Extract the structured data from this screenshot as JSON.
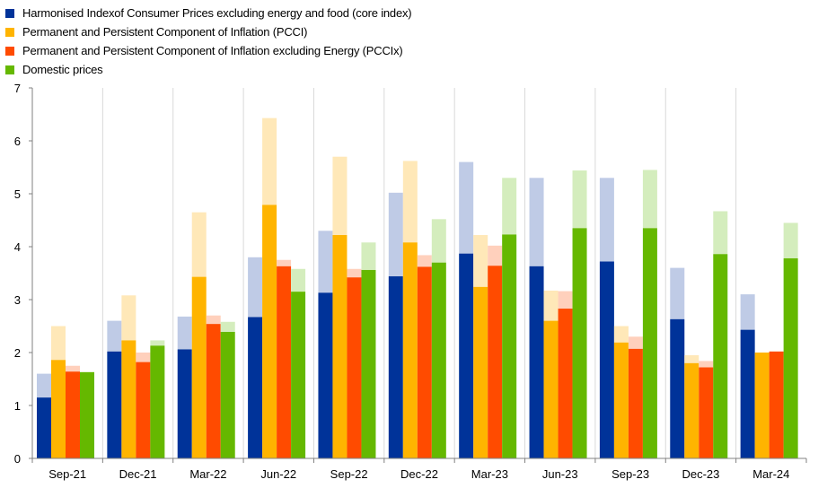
{
  "chart_data": {
    "type": "bar",
    "title": "",
    "xlabel": "",
    "ylabel": "",
    "ylim": [
      0,
      7
    ],
    "yticks": [
      "0",
      "1",
      "2",
      "3",
      "4",
      "5",
      "6",
      "7"
    ],
    "grid": "vertical separators between quarters",
    "legend_position": "top-left",
    "categories": [
      "Sep-21",
      "Dec-21",
      "Mar-22",
      "Jun-22",
      "Sep-22",
      "Dec-22",
      "Mar-23",
      "Jun-23",
      "Sep-23",
      "Dec-23",
      "Mar-24"
    ],
    "note": "Each series has a solid value and a lighter translucent extension up to an upper range value.",
    "series": [
      {
        "name": "Harmonised Indexof Consumer Prices excluding energy and food (core index)",
        "color": "#003399",
        "light_color": "#bfcbe6",
        "values": [
          1.15,
          2.02,
          2.06,
          2.67,
          3.13,
          3.44,
          3.87,
          3.63,
          3.72,
          2.63,
          2.43
        ],
        "upper": [
          1.6,
          2.6,
          2.68,
          3.8,
          4.3,
          5.02,
          5.6,
          5.3,
          5.3,
          3.6,
          3.1
        ]
      },
      {
        "name": "Permanent and Persistent Component of Inflation (PCCI)",
        "color": "#ffb400",
        "light_color": "#ffe8b8",
        "values": [
          1.86,
          2.23,
          3.43,
          4.79,
          4.22,
          4.08,
          3.24,
          2.6,
          2.19,
          1.8,
          2.0
        ],
        "upper": [
          2.5,
          3.08,
          4.65,
          6.43,
          5.7,
          5.62,
          4.22,
          3.17,
          2.5,
          1.95,
          2.0
        ]
      },
      {
        "name": "Permanent and Persistent Component of Inflation excluding Energy (PCCIx)",
        "color": "#ff4b00",
        "light_color": "#ffd0bc",
        "values": [
          1.64,
          1.82,
          2.54,
          3.63,
          3.42,
          3.62,
          3.64,
          2.83,
          2.07,
          1.72,
          2.02
        ],
        "upper": [
          1.75,
          2.0,
          2.7,
          3.75,
          3.58,
          3.84,
          4.02,
          3.16,
          2.3,
          1.84,
          2.02
        ]
      },
      {
        "name": "Domestic prices",
        "color": "#65b800",
        "light_color": "#d4edbd",
        "values": [
          1.63,
          2.13,
          2.39,
          3.15,
          3.56,
          3.7,
          4.23,
          4.35,
          4.35,
          3.86,
          3.78
        ],
        "upper": [
          1.63,
          2.23,
          2.58,
          3.58,
          4.08,
          4.52,
          5.3,
          5.44,
          5.45,
          4.67,
          4.45
        ]
      }
    ]
  }
}
